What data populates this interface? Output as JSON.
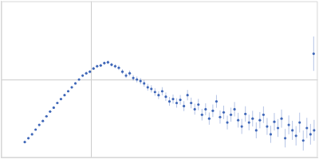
{
  "chart_data": {
    "type": "scatter",
    "marker": "circle",
    "color": "#3f67b8",
    "grid": true,
    "tick_labels": false,
    "xlim": [
      0,
      0.35
    ],
    "xticks": [
      0.1
    ],
    "ylim": [
      0,
      2
    ],
    "yticks": [
      1
    ],
    "x": [
      0.026,
      0.03,
      0.034,
      0.038,
      0.042,
      0.046,
      0.05,
      0.054,
      0.058,
      0.062,
      0.066,
      0.07,
      0.074,
      0.078,
      0.082,
      0.086,
      0.09,
      0.094,
      0.098,
      0.102,
      0.106,
      0.11,
      0.114,
      0.118,
      0.122,
      0.126,
      0.13,
      0.134,
      0.138,
      0.142,
      0.146,
      0.15,
      0.154,
      0.158,
      0.162,
      0.166,
      0.17,
      0.174,
      0.178,
      0.182,
      0.186,
      0.19,
      0.194,
      0.198,
      0.202,
      0.206,
      0.21,
      0.214,
      0.218,
      0.222,
      0.226,
      0.23,
      0.234,
      0.238,
      0.242,
      0.246,
      0.25,
      0.254,
      0.258,
      0.262,
      0.266,
      0.27,
      0.274,
      0.278,
      0.282,
      0.286,
      0.29,
      0.294,
      0.298,
      0.302,
      0.306,
      0.31,
      0.314,
      0.318,
      0.322,
      0.326,
      0.33,
      0.334,
      0.338,
      0.342,
      0.346,
      0.3455
    ],
    "values": [
      0.2,
      0.25,
      0.3,
      0.36,
      0.42,
      0.47,
      0.53,
      0.59,
      0.64,
      0.7,
      0.75,
      0.8,
      0.85,
      0.9,
      0.95,
      1.0,
      1.05,
      1.08,
      1.1,
      1.14,
      1.17,
      1.18,
      1.21,
      1.22,
      1.19,
      1.17,
      1.15,
      1.1,
      1.05,
      1.08,
      1.02,
      1.0,
      0.98,
      0.95,
      0.9,
      0.88,
      0.84,
      0.8,
      0.85,
      0.78,
      0.72,
      0.75,
      0.7,
      0.74,
      0.66,
      0.8,
      0.7,
      0.62,
      0.68,
      0.55,
      0.62,
      0.5,
      0.6,
      0.72,
      0.52,
      0.58,
      0.45,
      0.55,
      0.62,
      0.48,
      0.4,
      0.56,
      0.45,
      0.5,
      0.35,
      0.48,
      0.55,
      0.4,
      0.3,
      0.46,
      0.38,
      0.5,
      0.25,
      0.42,
      0.35,
      0.28,
      0.45,
      0.22,
      0.38,
      0.3,
      0.35,
      1.33
    ],
    "errors": [
      0.005,
      0.005,
      0.005,
      0.006,
      0.006,
      0.006,
      0.007,
      0.007,
      0.008,
      0.008,
      0.009,
      0.01,
      0.01,
      0.011,
      0.012,
      0.013,
      0.014,
      0.015,
      0.016,
      0.018,
      0.02,
      0.02,
      0.022,
      0.024,
      0.025,
      0.027,
      0.03,
      0.03,
      0.032,
      0.035,
      0.036,
      0.038,
      0.04,
      0.042,
      0.044,
      0.046,
      0.048,
      0.05,
      0.052,
      0.054,
      0.056,
      0.058,
      0.06,
      0.062,
      0.064,
      0.066,
      0.068,
      0.07,
      0.072,
      0.074,
      0.076,
      0.078,
      0.08,
      0.082,
      0.084,
      0.086,
      0.088,
      0.09,
      0.092,
      0.094,
      0.096,
      0.098,
      0.1,
      0.1,
      0.102,
      0.104,
      0.106,
      0.108,
      0.11,
      0.112,
      0.114,
      0.116,
      0.118,
      0.12,
      0.122,
      0.124,
      0.126,
      0.128,
      0.13,
      0.132,
      0.134,
      0.22
    ]
  }
}
